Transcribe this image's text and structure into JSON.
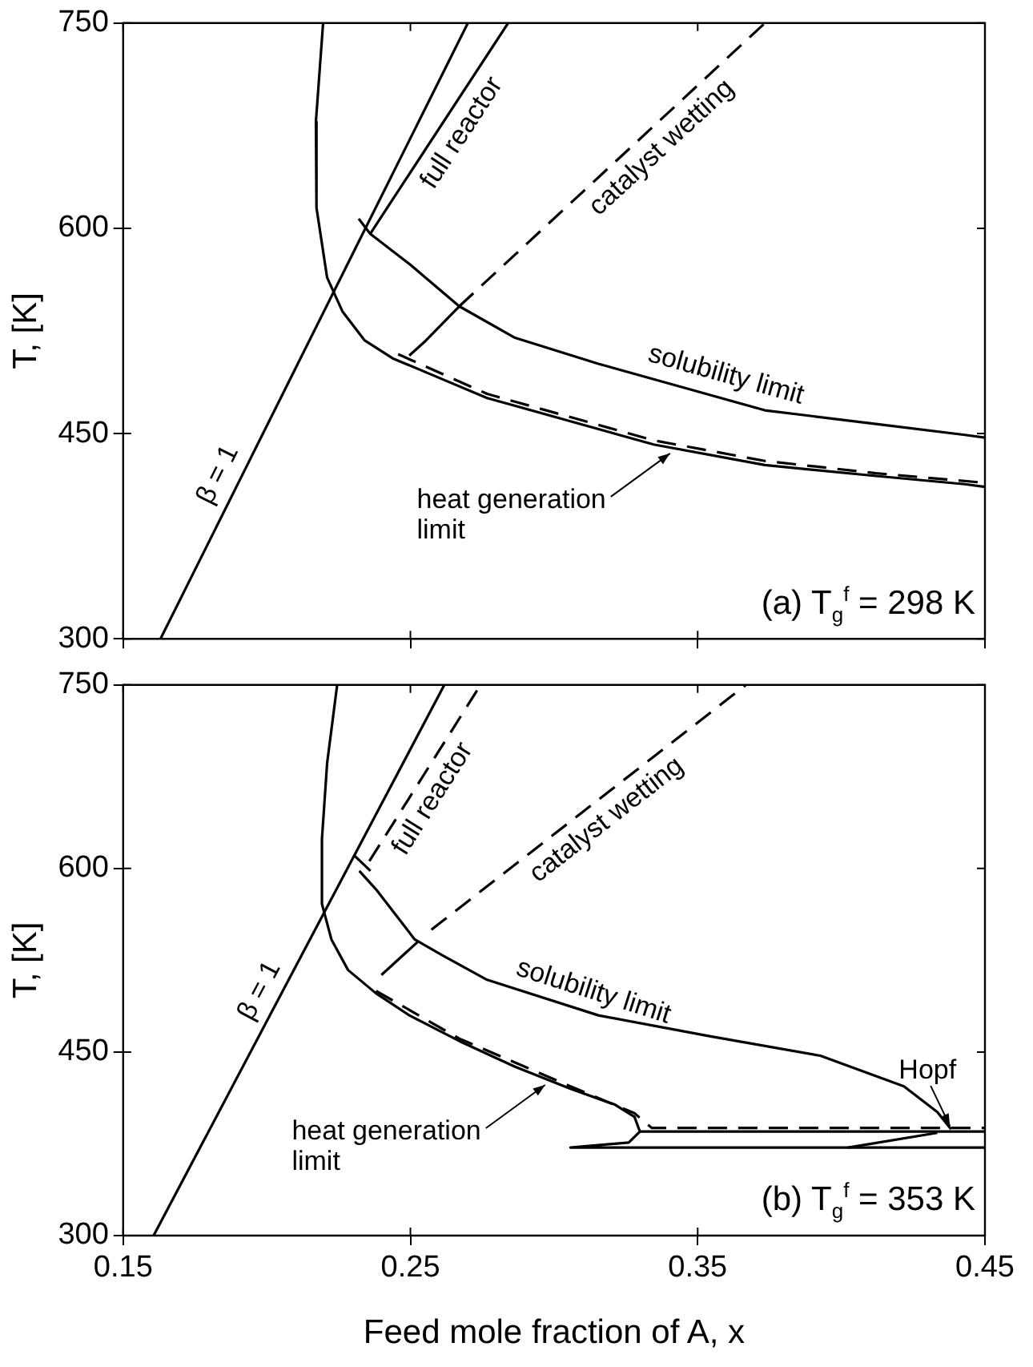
{
  "chart_data": [
    {
      "type": "line",
      "title": "(a) T$_{g}$$^{f}$ = 298 K",
      "ylabel": "T, [K]",
      "xlim": [
        0.15,
        0.45
      ],
      "ylim": [
        300,
        750
      ],
      "xticks": [
        0.15,
        0.25,
        0.35,
        0.45
      ],
      "yticks": [
        300,
        450,
        600,
        750
      ],
      "tick_labels": "y",
      "legend": false,
      "grid": false,
      "series": [
        {
          "color": "#000000",
          "line_style": "solid",
          "x": [
            0.163,
            0.27
          ],
          "values": [
            300,
            750
          ]
        },
        {
          "color": "#000000",
          "line_style": "solid",
          "x": [
            0.232,
            0.236,
            0.284
          ],
          "values": [
            607,
            596,
            750
          ]
        },
        {
          "color": "#000000",
          "line_style": "solid",
          "x": [
            0.236,
            0.2496,
            0.267,
            0.2864,
            0.3154,
            0.3444,
            0.3734,
            0.4121,
            0.443,
            0.45
          ],
          "values": [
            596,
            574,
            543,
            520,
            501,
            484,
            467,
            457,
            449,
            447
          ]
        },
        {
          "color": "#000000",
          "line_style": "solid",
          "x": [
            0.2196,
            0.2171,
            0.2173,
            0.221,
            0.2264,
            0.2341,
            0.2438,
            0.2574,
            0.2767,
            0.3057,
            0.3347,
            0.3734,
            0.4121,
            0.443,
            0.45
          ],
          "values": [
            750,
            678,
            615,
            564,
            539,
            518,
            505,
            493,
            476,
            459,
            442,
            427,
            419,
            413,
            411
          ]
        },
        {
          "color": "#000000",
          "line_style": "dashed",
          "x": [
            0.2457,
            0.2767,
            0.3057,
            0.3347,
            0.3734,
            0.4121,
            0.45
          ],
          "values": [
            508,
            479,
            462,
            445,
            430,
            421,
            414
          ]
        },
        {
          "color": "#000000",
          "line_style": "solid",
          "x": [
            0.2496,
            0.2554,
            0.267
          ],
          "values": [
            507,
            518,
            543
          ]
        },
        {
          "color": "#000000",
          "line_style": "dashed",
          "x": [
            0.267,
            0.3734
          ],
          "values": [
            543,
            750
          ]
        }
      ],
      "annotations": [
        {
          "text": "β = 1",
          "x": 0.1895,
          "y": 413
        },
        {
          "text": "full reactor",
          "x": 0.2619,
          "y": 678
        },
        {
          "text": "catalyst wetting",
          "x": 0.3326,
          "y": 670
        },
        {
          "text": "solubility limit",
          "x": 0.3579,
          "y": 478
        },
        {
          "text": "heat generation limit",
          "x": 0.3415,
          "y": 439
        }
      ]
    },
    {
      "type": "line",
      "title": "(b) T$_{g}$$^{f}$ = 353 K",
      "xlabel": "Feed mole fraction of A, x",
      "ylabel": "T, [K]",
      "xlim": [
        0.15,
        0.45
      ],
      "ylim": [
        300,
        750
      ],
      "xticks": [
        0.15,
        0.25,
        0.35,
        0.45
      ],
      "yticks": [
        300,
        450,
        600,
        750
      ],
      "legend": false,
      "grid": false,
      "series": [
        {
          "color": "#000000",
          "line_style": "solid",
          "x": [
            0.1606,
            0.2618
          ],
          "values": [
            300,
            750
          ]
        },
        {
          "color": "#000000",
          "line_style": "dashed",
          "x": [
            0.2357,
            0.2744
          ],
          "values": [
            606,
            750
          ]
        },
        {
          "color": "#000000",
          "line_style": "solid",
          "x": [
            0.2303,
            0.2361
          ],
          "values": [
            611,
            598
          ]
        },
        {
          "color": "#000000",
          "line_style": "solid",
          "x": [
            0.2322,
            0.238,
            0.2515,
            0.2612,
            0.2767,
            0.3154,
            0.3541,
            0.3927,
            0.4218,
            0.4334,
            0.4382
          ],
          "values": [
            598,
            583,
            542,
            529,
            509,
            480,
            463,
            447,
            422,
            401,
            387
          ]
        },
        {
          "color": "#000000",
          "line_style": "solid",
          "x": [
            0.2245,
            0.221,
            0.2192,
            0.2192,
            0.2225,
            0.2283,
            0.238,
            0.2496,
            0.267,
            0.2864,
            0.3057,
            0.3212,
            0.328,
            0.3299,
            0.326,
            0.3057,
            0.45
          ],
          "values": [
            750,
            686,
            624,
            571,
            542,
            517,
            498,
            480,
            459,
            438,
            420,
            407,
            397,
            385,
            376,
            372,
            372
          ]
        },
        {
          "color": "#000000",
          "line_style": "solid",
          "x": [
            0.3299,
            0.45
          ],
          "values": [
            385,
            385
          ]
        },
        {
          "color": "#000000",
          "line_style": "dashed",
          "x": [
            0.238,
            0.267,
            0.3057,
            0.328,
            0.334,
            0.45
          ],
          "values": [
            500,
            461,
            422,
            400,
            388,
            388
          ]
        },
        {
          "color": "#000000",
          "line_style": "solid",
          "x": [
            0.4024,
            0.4334
          ],
          "values": [
            372,
            384
          ]
        },
        {
          "color": "#000000",
          "line_style": "solid",
          "x": [
            0.2399,
            0.2525
          ],
          "values": [
            513,
            540
          ]
        },
        {
          "color": "#000000",
          "line_style": "dashed",
          "x": [
            0.2573,
            0.3668
          ],
          "values": [
            550,
            750
          ]
        }
      ],
      "annotations": [
        {
          "text": "β = 1",
          "x": 0.2039,
          "y": 492
        },
        {
          "text": "full reactor",
          "x": 0.2517,
          "y": 666
        },
        {
          "text": "catalyst wetting",
          "x": 0.3139,
          "y": 653
        },
        {
          "text": "solubility limit",
          "x": 0.3115,
          "y": 483
        },
        {
          "text": "heat generation limit",
          "x": 0.298,
          "y": 427
        },
        {
          "text": "Hopf",
          "x": 0.4378,
          "y": 387
        }
      ]
    }
  ]
}
